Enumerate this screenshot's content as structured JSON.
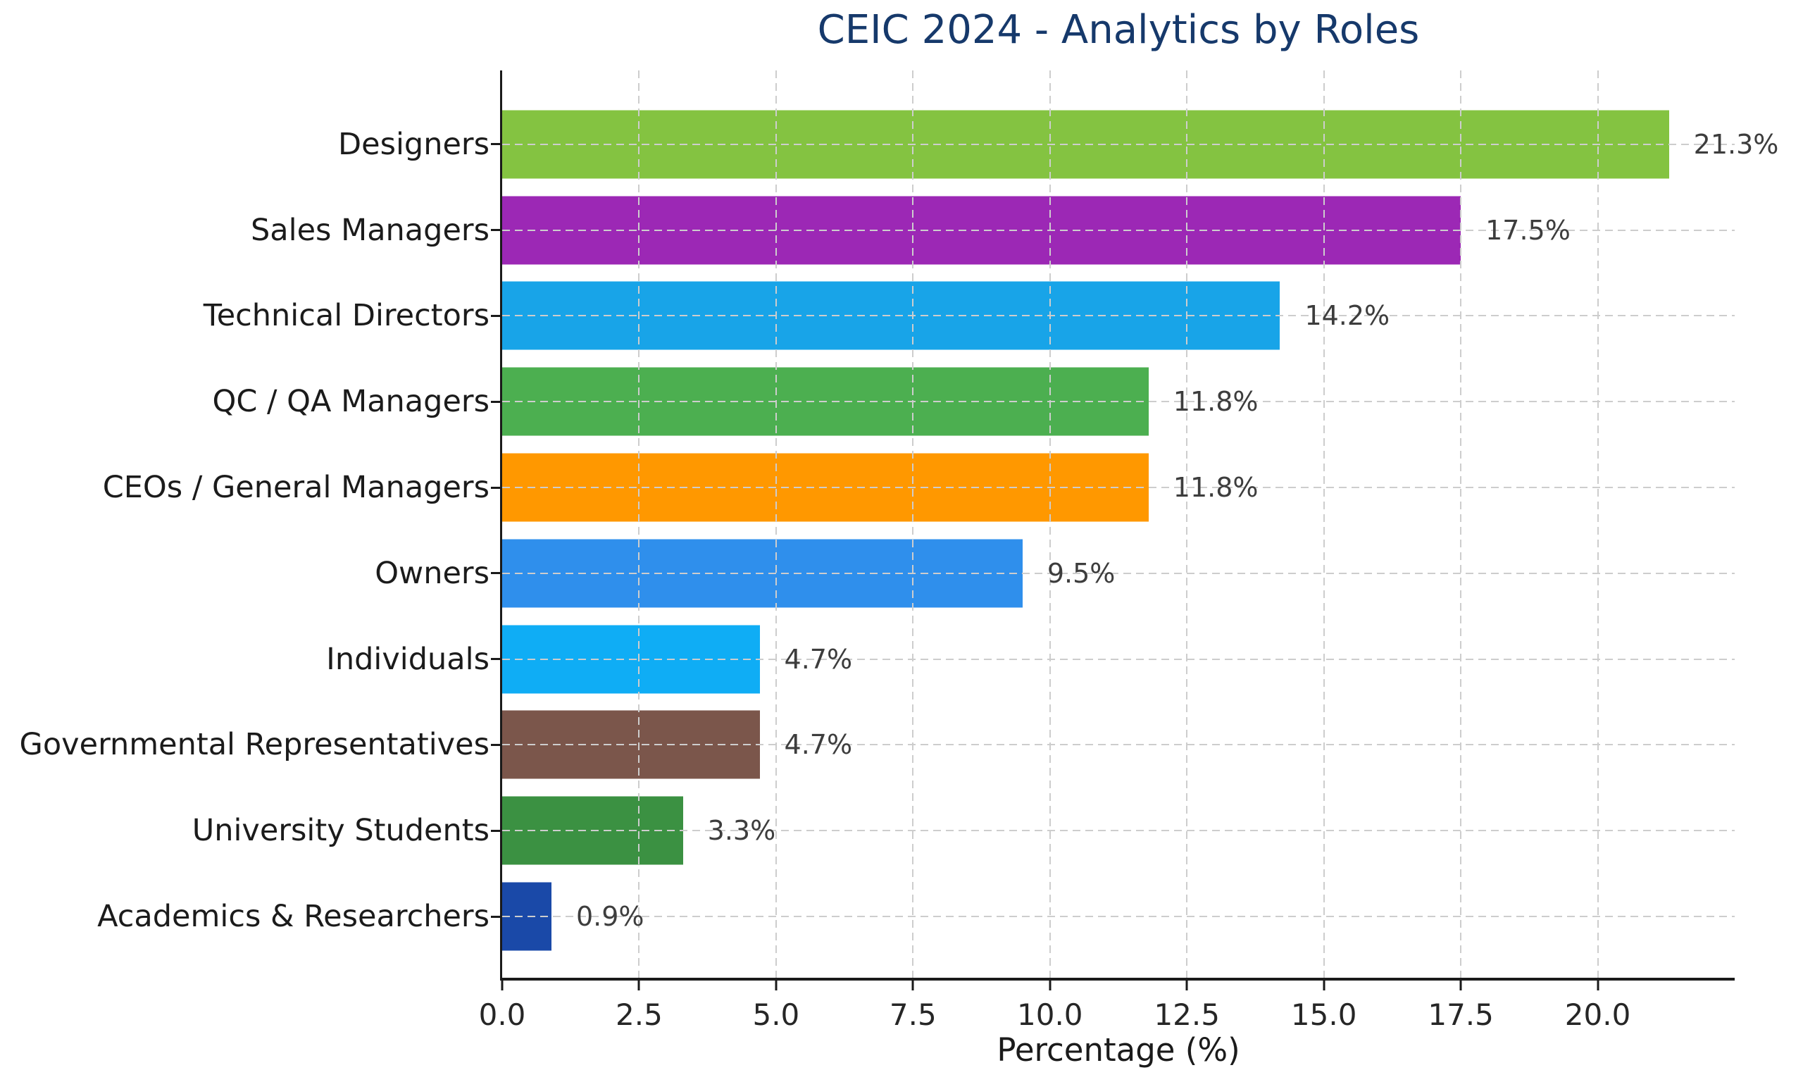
{
  "chart_data": {
    "type": "bar",
    "orientation": "horizontal",
    "title": "CEIC 2024 - Analytics by Roles",
    "xlabel": "Percentage (%)",
    "ylabel": "",
    "categories": [
      "Designers",
      "Sales Managers",
      "Technical Directors",
      "QC / QA Managers",
      "CEOs / General Managers",
      "Owners",
      "Individuals",
      "Governmental Representatives",
      "University Students",
      "Academics & Researchers"
    ],
    "values": [
      21.3,
      17.5,
      14.2,
      11.8,
      11.8,
      9.5,
      4.7,
      4.7,
      3.3,
      0.9
    ],
    "value_labels": [
      "21.3%",
      "17.5%",
      "14.2%",
      "11.8%",
      "11.8%",
      "9.5%",
      "4.7%",
      "4.7%",
      "3.3%",
      "0.9%"
    ],
    "bar_colors": [
      "#84c341",
      "#9c28b5",
      "#18a4e8",
      "#4caf50",
      "#ff9800",
      "#2f8fec",
      "#0fadf5",
      "#7b564b",
      "#3b9142",
      "#1a49a8"
    ],
    "x_ticks": [
      0.0,
      2.5,
      5.0,
      7.5,
      10.0,
      12.5,
      15.0,
      17.5,
      20.0
    ],
    "x_tick_labels": [
      "0.0",
      "2.5",
      "5.0",
      "7.5",
      "10.0",
      "12.5",
      "15.0",
      "17.5",
      "20.0"
    ],
    "xlim": [
      0,
      22.5
    ],
    "grid": true,
    "grid_style": "dashed",
    "legend": false,
    "colors": {
      "title": "#16396b",
      "category_text": "#1b1b1b",
      "tick_text": "#262626",
      "value_text": "#3d3d3d",
      "grid": "#cdcdcd",
      "spine": "#1a1a1a",
      "background": "#ffffff"
    }
  }
}
